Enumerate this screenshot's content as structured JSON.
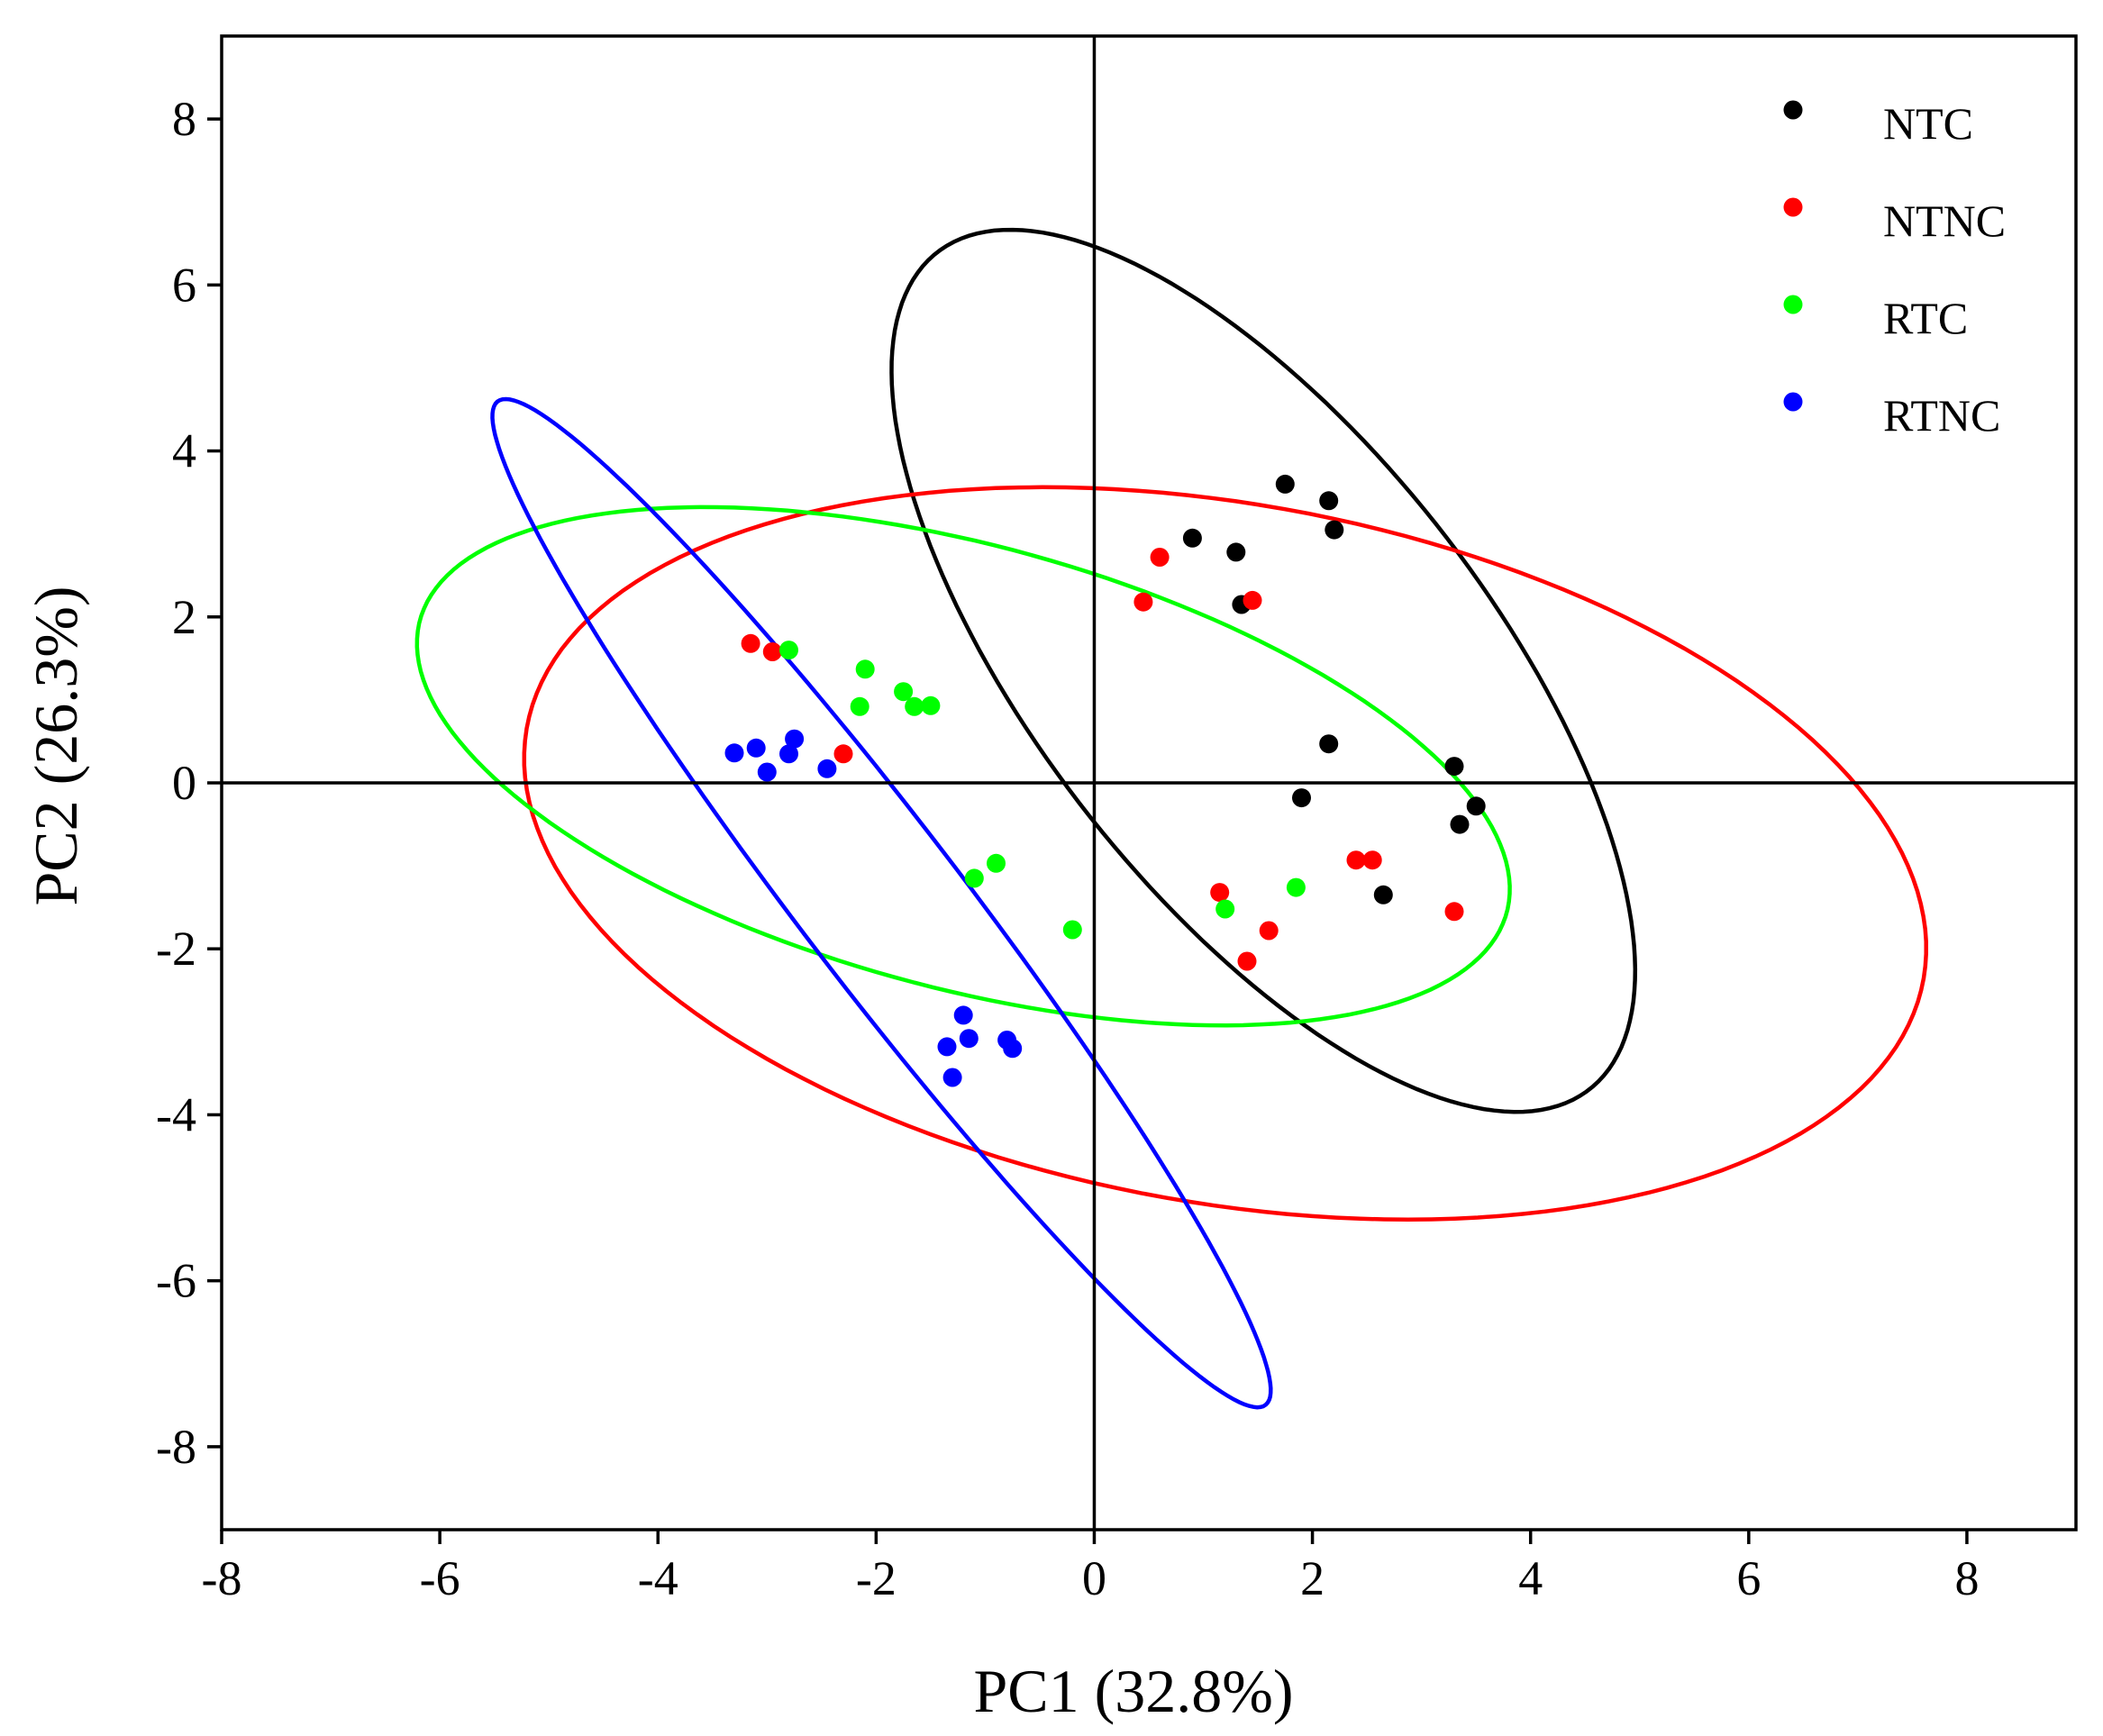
{
  "chart_data": {
    "type": "scatter",
    "title": "",
    "xlabel": "PC1 (32.8%)",
    "ylabel": "PC2 (26.3%)",
    "xlim": [
      -8,
      9
    ],
    "ylim": [
      -9,
      9
    ],
    "xticks": [
      -8,
      -6,
      -4,
      -2,
      0,
      2,
      4,
      6,
      8
    ],
    "yticks": [
      -8,
      -6,
      -4,
      -2,
      0,
      2,
      4,
      6,
      8
    ],
    "zero_lines": true,
    "grid": false,
    "legend_position": "top-right",
    "series": [
      {
        "name": "NTC",
        "color": "#000000",
        "points": [
          [
            0.9,
            2.95
          ],
          [
            1.3,
            2.78
          ],
          [
            1.75,
            3.6
          ],
          [
            2.15,
            3.4
          ],
          [
            2.2,
            3.05
          ],
          [
            1.35,
            2.15
          ],
          [
            2.15,
            0.47
          ],
          [
            1.9,
            -0.18
          ],
          [
            3.3,
            0.2
          ],
          [
            3.5,
            -0.28
          ],
          [
            3.35,
            -0.5
          ],
          [
            2.65,
            -1.35
          ]
        ],
        "ellipse": {
          "cx": 1.55,
          "cy": 1.35,
          "rx": 5.9,
          "ry": 2.25,
          "angle_deg": -62
        }
      },
      {
        "name": "NTNC",
        "color": "#ff0000",
        "points": [
          [
            0.6,
            2.72
          ],
          [
            0.45,
            2.18
          ],
          [
            1.45,
            2.2
          ],
          [
            -3.15,
            1.68
          ],
          [
            -2.95,
            1.58
          ],
          [
            -2.3,
            0.35
          ],
          [
            2.4,
            -0.93
          ],
          [
            2.55,
            -0.93
          ],
          [
            1.15,
            -1.32
          ],
          [
            1.6,
            -1.78
          ],
          [
            1.4,
            -2.15
          ],
          [
            3.3,
            -1.55
          ]
        ],
        "ellipse": {
          "cx": 1.2,
          "cy": -0.85,
          "rx": 6.6,
          "ry": 4.15,
          "angle_deg": -17
        }
      },
      {
        "name": "RTC",
        "color": "#00ff00",
        "points": [
          [
            -2.8,
            1.6
          ],
          [
            -2.1,
            1.37
          ],
          [
            -1.75,
            1.1
          ],
          [
            -2.15,
            0.92
          ],
          [
            -1.65,
            0.92
          ],
          [
            -1.5,
            0.93
          ],
          [
            -1.1,
            -1.15
          ],
          [
            -0.9,
            -0.97
          ],
          [
            -0.2,
            -1.77
          ],
          [
            1.85,
            -1.26
          ],
          [
            1.2,
            -1.52
          ]
        ],
        "ellipse": {
          "cx": -1.2,
          "cy": 0.2,
          "rx": 5.3,
          "ry": 2.6,
          "angle_deg": -22
        }
      },
      {
        "name": "RTNC",
        "color": "#0000ff",
        "points": [
          [
            -3.3,
            0.36
          ],
          [
            -3.1,
            0.42
          ],
          [
            -2.8,
            0.35
          ],
          [
            -2.75,
            0.53
          ],
          [
            -3.0,
            0.13
          ],
          [
            -2.45,
            0.17
          ],
          [
            -1.2,
            -2.8
          ],
          [
            -1.15,
            -3.08
          ],
          [
            -1.35,
            -3.18
          ],
          [
            -0.8,
            -3.1
          ],
          [
            -0.75,
            -3.2
          ],
          [
            -1.3,
            -3.55
          ]
        ],
        "ellipse": {
          "cx": -1.95,
          "cy": -1.45,
          "rx": 7.0,
          "ry": 0.8,
          "angle_deg": -60
        }
      }
    ]
  }
}
